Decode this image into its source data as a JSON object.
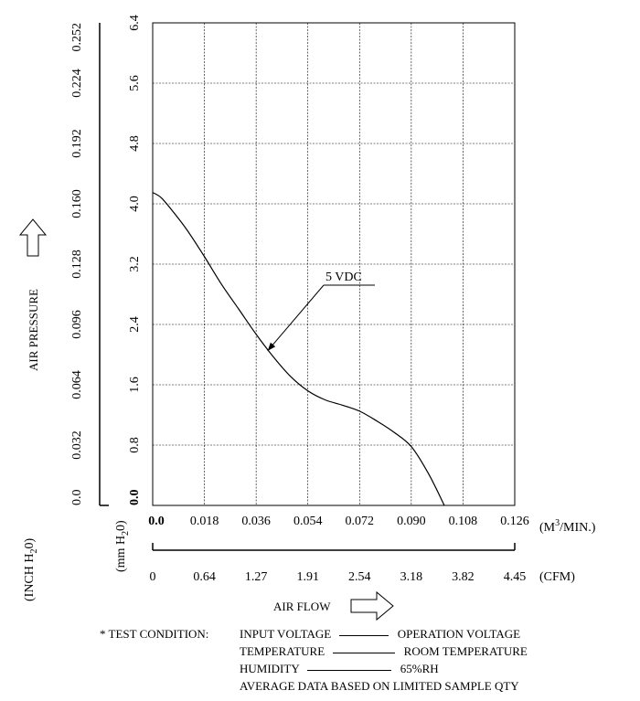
{
  "chart_data": {
    "type": "line",
    "title": "",
    "xlabel": "AIR FLOW",
    "ylabel": "AIR PRESSURE",
    "x_primary_unit": "(M",
    "x_primary_unit_sup": "3",
    "x_primary_unit_end": "/MIN.)",
    "x_secondary_unit": "(CFM)",
    "y_primary_unit": "(mm H",
    "y_primary_unit_sub": "2",
    "y_primary_unit_end": "0)",
    "y_secondary_unit": "(INCH H",
    "y_secondary_unit_sub": "2",
    "y_secondary_unit_end": "0)",
    "xlim": [
      0,
      0.126
    ],
    "ylim": [
      0,
      6.4
    ],
    "x_ticks": [
      "0.0",
      "0.018",
      "0.036",
      "0.054",
      "0.072",
      "0.090",
      "0.108",
      "0.126"
    ],
    "x_ticks_cfm": [
      "0",
      "0.64",
      "1.27",
      "1.91",
      "2.54",
      "3.18",
      "3.82",
      "4.45"
    ],
    "y_ticks_mm": [
      "0.0",
      "0.8",
      "1.6",
      "2.4",
      "3.2",
      "4.0",
      "4.8",
      "5.6",
      "6.4"
    ],
    "y_ticks_inch": [
      "0.0",
      "0.032",
      "0.064",
      "0.096",
      "0.128",
      "0.160",
      "0.192",
      "0.224",
      "0.252"
    ],
    "grid": true,
    "series": [
      {
        "name": "5 VDC",
        "x": [
          0.0,
          0.003,
          0.007,
          0.012,
          0.018,
          0.024,
          0.03,
          0.036,
          0.042,
          0.048,
          0.054,
          0.06,
          0.066,
          0.072,
          0.078,
          0.084,
          0.09,
          0.096,
          0.1015
        ],
        "y": [
          4.15,
          4.08,
          3.9,
          3.65,
          3.3,
          2.93,
          2.6,
          2.27,
          1.97,
          1.71,
          1.52,
          1.4,
          1.33,
          1.25,
          1.12,
          0.97,
          0.78,
          0.42,
          0.0
        ]
      }
    ],
    "annotations": [
      {
        "text": "5 VDC",
        "points_to": {
          "x": 0.04,
          "y": 2.05
        }
      }
    ]
  },
  "test_condition": {
    "heading": "* TEST CONDITION:",
    "rows": [
      {
        "label": "INPUT VOLTAGE",
        "value": "OPERATION VOLTAGE"
      },
      {
        "label": "TEMPERATURE",
        "value": "ROOM TEMPERATURE"
      },
      {
        "label": "HUMIDITY",
        "value": "65%RH"
      }
    ],
    "note": "AVERAGE DATA BASED ON LIMITED SAMPLE QTY"
  }
}
